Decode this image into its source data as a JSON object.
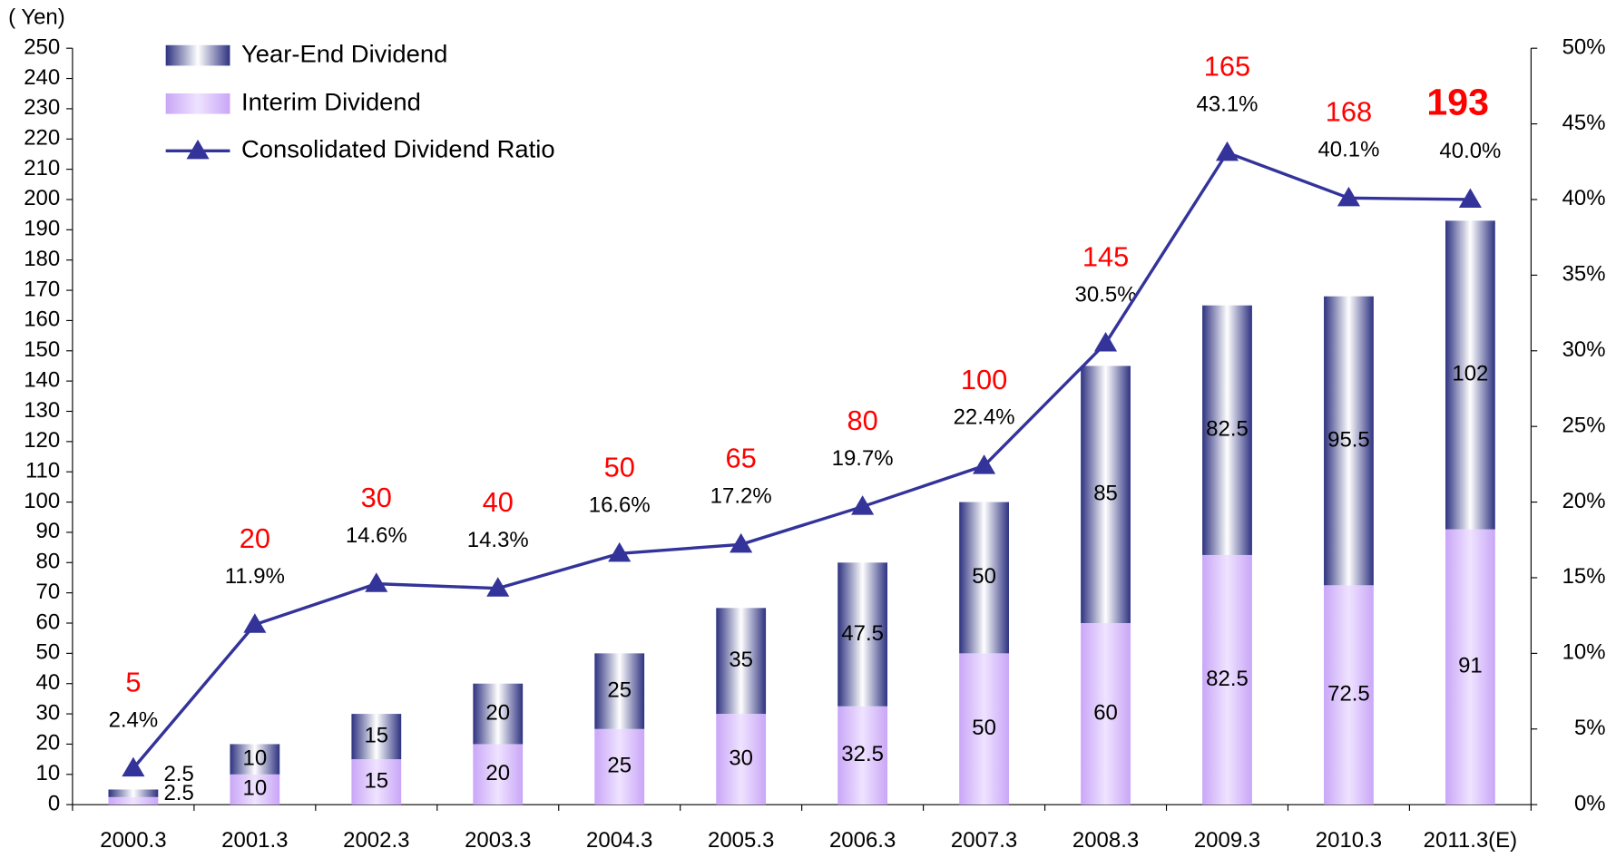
{
  "chart_data": {
    "type": "bar",
    "y_axis_label": "( Yen)",
    "categories": [
      "2000.3",
      "2001.3",
      "2002.3",
      "2003.3",
      "2004.3",
      "2005.3",
      "2006.3",
      "2007.3",
      "2008.3",
      "2009.3",
      "2010.3",
      "2011.3(E)"
    ],
    "series": [
      {
        "name": "Interim Dividend",
        "color": "#c9a6f7",
        "values": [
          2.5,
          10,
          15,
          20,
          25,
          30,
          32.5,
          50,
          60,
          82.5,
          72.5,
          91
        ]
      },
      {
        "name": "Year-End Dividend",
        "color": "#2e3280",
        "values": [
          2.5,
          10,
          15,
          20,
          25,
          35,
          47.5,
          50,
          85,
          82.5,
          95.5,
          102
        ]
      },
      {
        "name": "Consolidated Dividend Ratio",
        "color": "#33339a",
        "axis": "y2",
        "values": [
          2.4,
          11.9,
          14.6,
          14.3,
          16.6,
          17.2,
          19.7,
          22.4,
          30.5,
          43.1,
          40.1,
          40.0
        ],
        "value_labels": [
          "2.4%",
          "11.9%",
          "14.6%",
          "14.3%",
          "16.6%",
          "17.2%",
          "19.7%",
          "22.4%",
          "30.5%",
          "43.1%",
          "40.1%",
          "40.0%"
        ]
      }
    ],
    "totals": [
      5,
      20,
      30,
      40,
      50,
      65,
      80,
      100,
      145,
      165,
      168,
      193
    ],
    "highlight_last_total": true,
    "ylim": [
      0,
      250
    ],
    "yticks": [
      0,
      10,
      20,
      30,
      40,
      50,
      60,
      70,
      80,
      90,
      100,
      110,
      120,
      130,
      140,
      150,
      160,
      170,
      180,
      190,
      200,
      210,
      220,
      230,
      240,
      250
    ],
    "y2lim": [
      0,
      50
    ],
    "y2ticks": [
      {
        "value": 0,
        "label": "0%"
      },
      {
        "value": 5,
        "label": "5%"
      },
      {
        "value": 10,
        "label": "10%"
      },
      {
        "value": 15,
        "label": "15%"
      },
      {
        "value": 20,
        "label": "20%"
      },
      {
        "value": 25,
        "label": "25%"
      },
      {
        "value": 30,
        "label": "30%"
      },
      {
        "value": 35,
        "label": "35%"
      },
      {
        "value": 40,
        "label": "40%"
      },
      {
        "value": 45,
        "label": "45%"
      },
      {
        "value": 50,
        "label": "50%"
      }
    ]
  }
}
